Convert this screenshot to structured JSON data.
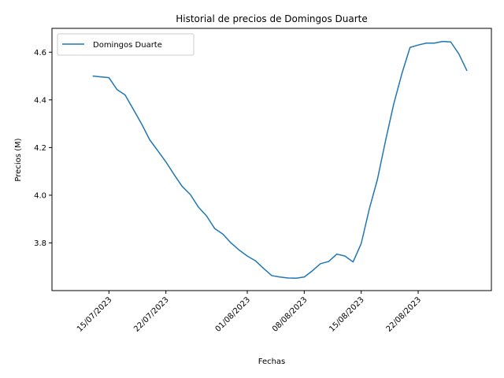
{
  "chart_data": {
    "type": "line",
    "title": "Historial de precios de Domingos Duarte",
    "xlabel": "Fechas",
    "ylabel": "Precios (M)",
    "xlim": [
      "2023-07-08",
      "2023-08-31"
    ],
    "ylim": [
      3.6,
      4.7
    ],
    "x_ticks": [
      "2023-07-15",
      "2023-07-22",
      "2023-08-01",
      "2023-08-08",
      "2023-08-15",
      "2023-08-22"
    ],
    "x_tick_labels": [
      "15/07/2023",
      "22/07/2023",
      "01/08/2023",
      "08/08/2023",
      "15/08/2023",
      "22/08/2023"
    ],
    "y_ticks": [
      3.8,
      4.0,
      4.2,
      4.4,
      4.6
    ],
    "y_tick_labels": [
      "3.8",
      "4.0",
      "4.2",
      "4.4",
      "4.6"
    ],
    "legend_position": "top-left",
    "grid": false,
    "series": [
      {
        "name": "Domingos Duarte",
        "color": "#1f77b4",
        "points": [
          [
            "2023-07-13",
            4.5
          ],
          [
            "2023-07-15",
            4.493
          ],
          [
            "2023-07-16",
            4.443
          ],
          [
            "2023-07-17",
            4.42
          ],
          [
            "2023-07-18",
            4.36
          ],
          [
            "2023-07-19",
            4.3
          ],
          [
            "2023-07-20",
            4.233
          ],
          [
            "2023-07-21",
            4.187
          ],
          [
            "2023-07-22",
            4.14
          ],
          [
            "2023-07-23",
            4.087
          ],
          [
            "2023-07-24",
            4.037
          ],
          [
            "2023-07-25",
            4.003
          ],
          [
            "2023-07-26",
            3.95
          ],
          [
            "2023-07-27",
            3.913
          ],
          [
            "2023-07-28",
            3.86
          ],
          [
            "2023-07-29",
            3.837
          ],
          [
            "2023-07-30",
            3.8
          ],
          [
            "2023-07-31",
            3.77
          ],
          [
            "2023-08-01",
            3.745
          ],
          [
            "2023-08-02",
            3.725
          ],
          [
            "2023-08-03",
            3.693
          ],
          [
            "2023-08-04",
            3.663
          ],
          [
            "2023-08-05",
            3.657
          ],
          [
            "2023-08-06",
            3.653
          ],
          [
            "2023-08-07",
            3.652
          ],
          [
            "2023-08-08",
            3.657
          ],
          [
            "2023-08-09",
            3.683
          ],
          [
            "2023-08-10",
            3.713
          ],
          [
            "2023-08-11",
            3.722
          ],
          [
            "2023-08-12",
            3.753
          ],
          [
            "2023-08-13",
            3.745
          ],
          [
            "2023-08-14",
            3.72
          ],
          [
            "2023-08-15",
            3.797
          ],
          [
            "2023-08-16",
            3.943
          ],
          [
            "2023-08-17",
            4.067
          ],
          [
            "2023-08-18",
            4.23
          ],
          [
            "2023-08-19",
            4.383
          ],
          [
            "2023-08-20",
            4.51
          ],
          [
            "2023-08-21",
            4.62
          ],
          [
            "2023-08-22",
            4.63
          ],
          [
            "2023-08-23",
            4.638
          ],
          [
            "2023-08-24",
            4.638
          ],
          [
            "2023-08-25",
            4.645
          ],
          [
            "2023-08-26",
            4.643
          ],
          [
            "2023-08-27",
            4.593
          ],
          [
            "2023-08-28",
            4.522
          ]
        ]
      }
    ]
  }
}
